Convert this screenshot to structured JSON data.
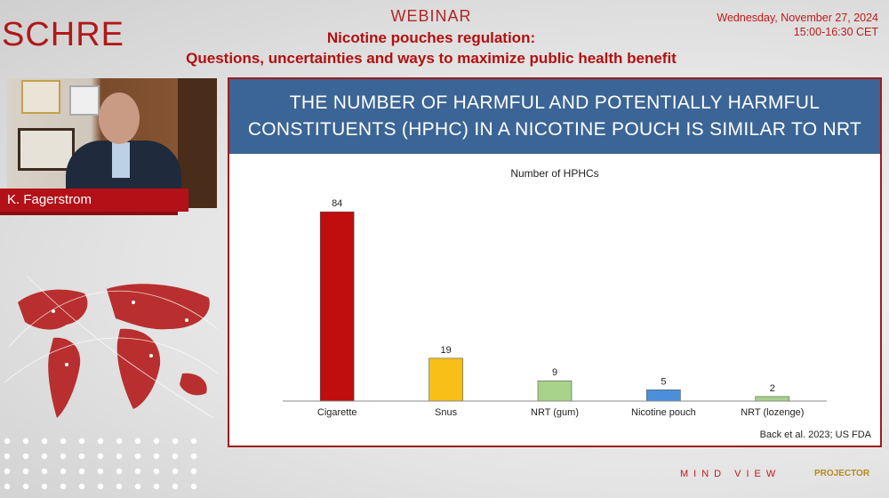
{
  "header": {
    "logo": "SCHRE",
    "webinar": "WEBINAR",
    "title_line1": "Nicotine pouches regulation:",
    "title_line2": "Questions, uncertainties and ways to maximize public health benefit",
    "date": "Wednesday, November 27, 2024",
    "time": "15:00-16:30 CET"
  },
  "speaker": {
    "name": "K. Fagerstrom"
  },
  "slide": {
    "title_line1": "THE NUMBER OF HARMFUL AND POTENTIALLY HARMFUL",
    "title_line2": "CONSTITUENTS (HPHC) IN A NICOTINE POUCH IS SIMILAR TO NRT",
    "source": "Back et al. 2023; US FDA"
  },
  "chart_data": {
    "type": "bar",
    "title": "Number of HPHCs",
    "categories": [
      "Cigarette",
      "Snus",
      "NRT (gum)",
      "Nicotine pouch",
      "NRT (lozenge)"
    ],
    "values": [
      84,
      19,
      9,
      5,
      2
    ],
    "colors": [
      "#c00d0d",
      "#f7bf17",
      "#a7d38a",
      "#4a8fdc",
      "#a7d38a"
    ],
    "ylim": [
      0,
      90
    ],
    "grid": false,
    "legend": "none"
  },
  "footer": {
    "mindview": "MIND VIEW",
    "projector": "PROJECTOR"
  }
}
